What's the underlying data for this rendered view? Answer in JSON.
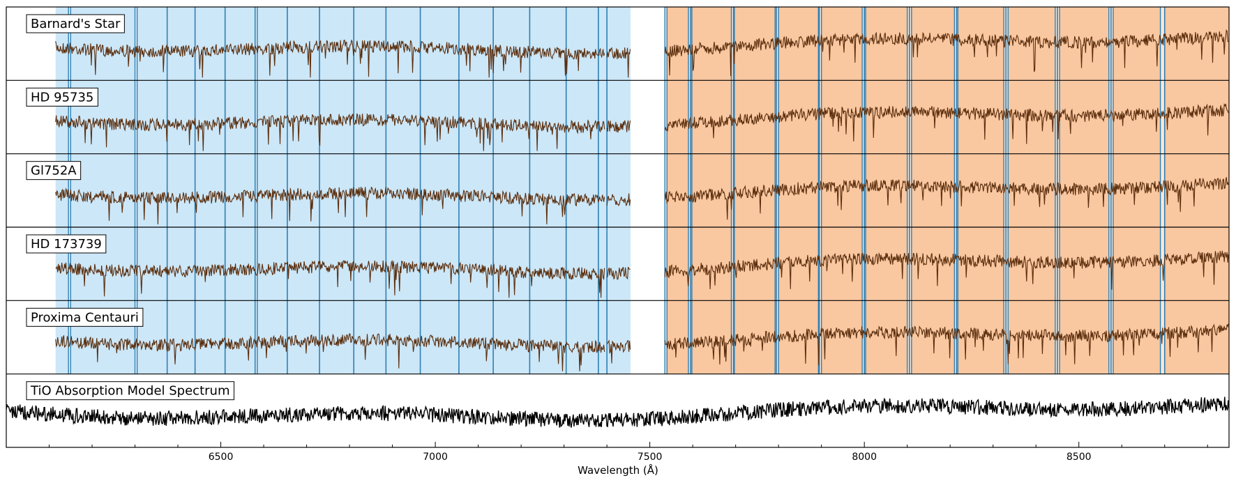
{
  "chart_data": {
    "type": "line",
    "xlabel": "Wavelength (Å)",
    "xlim": [
      6000,
      8850
    ],
    "xticks": [
      6500,
      7000,
      7500,
      8000,
      8500
    ],
    "xtick_labels": [
      "6500",
      "7000",
      "7500",
      "8000",
      "8500"
    ],
    "grid": false,
    "panels": [
      {
        "label": "Barnard's Star",
        "color": "#5a2d0c"
      },
      {
        "label": "HD 95735",
        "color": "#5a2d0c"
      },
      {
        "label": "Gl752A",
        "color": "#5a2d0c"
      },
      {
        "label": "HD 173739",
        "color": "#5a2d0c"
      },
      {
        "label": "Proxima Centauri",
        "color": "#5a2d0c"
      },
      {
        "label": "TiO Absorption Model Spectrum",
        "color": "#000000"
      }
    ],
    "blue_region": [
      6115,
      7455
    ],
    "orange_region": [
      7535,
      8850
    ],
    "order_gaps": [
      6375,
      6440,
      6510,
      6580,
      6655,
      6730,
      6810,
      6885,
      6965,
      7055,
      7135,
      7220,
      7305,
      7380,
      7400,
      7595,
      7695,
      7795,
      7895,
      8000,
      8105,
      8215,
      8330,
      8450,
      8575,
      8700
    ],
    "order_gap_pairs": [
      [
        6145,
        6150
      ],
      [
        6300,
        6305
      ],
      [
        6580,
        6585
      ],
      [
        7535,
        7540
      ],
      [
        7590,
        7598
      ],
      [
        7690,
        7697
      ],
      [
        7792,
        7800
      ],
      [
        7893,
        7900
      ],
      [
        7995,
        8003
      ],
      [
        8100,
        8110
      ],
      [
        8210,
        8218
      ],
      [
        8325,
        8335
      ],
      [
        8445,
        8455
      ],
      [
        8570,
        8580
      ],
      [
        8690,
        8700
      ]
    ],
    "colors": {
      "blue_band": "#cce7f8",
      "orange_band": "#f9c7a0",
      "order_line": "#2e7fb4",
      "axis": "#000000"
    }
  }
}
